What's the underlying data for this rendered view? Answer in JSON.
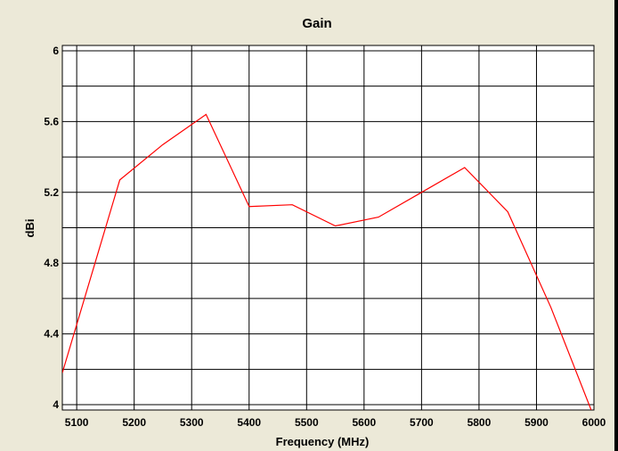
{
  "chart_data": {
    "type": "line",
    "title": "Gain",
    "xlabel": "Frequency  (MHz)",
    "ylabel": "dBi",
    "xlim": [
      5075,
      6000
    ],
    "ylim": [
      3.97,
      6.03
    ],
    "x_ticks": [
      5100,
      5200,
      5300,
      5400,
      5500,
      5600,
      5700,
      5800,
      5900,
      6000
    ],
    "y_ticks": [
      4,
      4.4,
      4.8,
      5.2,
      5.6,
      6
    ],
    "y_tick_labels": [
      "4",
      "4.4",
      "4.8",
      "5.2",
      "5.6",
      "6"
    ],
    "grid": true,
    "series": [
      {
        "color": "#ff0000",
        "x": [
          5075,
          5175,
          5250,
          5325,
          5400,
          5475,
          5550,
          5625,
          5700,
          5775,
          5850,
          5925,
          6000
        ],
        "y": [
          4.18,
          5.27,
          5.47,
          5.64,
          5.12,
          5.13,
          5.01,
          5.06,
          5.2,
          5.34,
          5.09,
          4.55,
          3.93
        ]
      }
    ]
  }
}
